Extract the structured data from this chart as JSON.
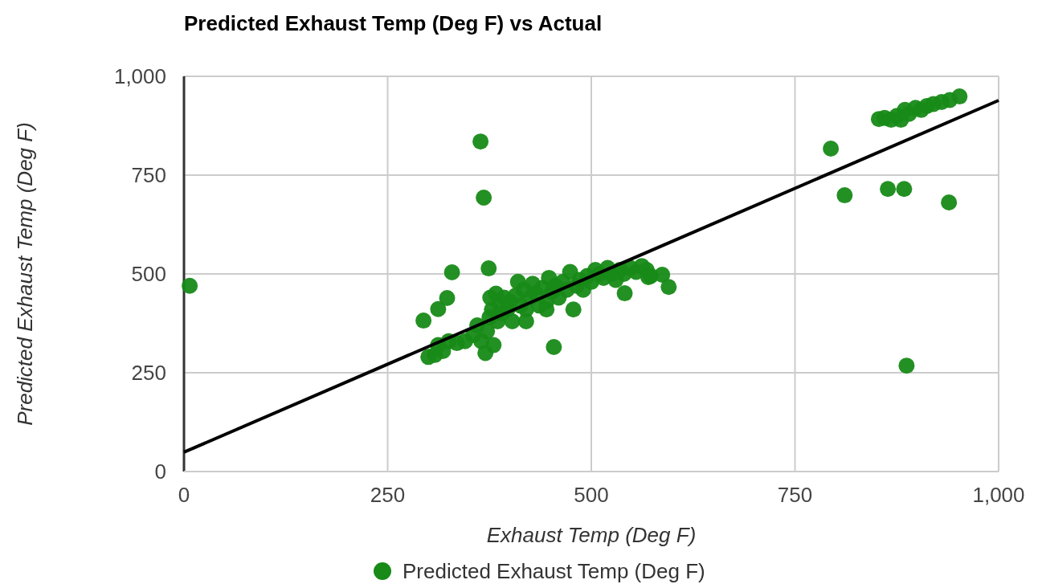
{
  "chart_data": {
    "type": "scatter",
    "title": "Predicted Exhaust Temp (Deg F) vs Actual",
    "xlabel": "Exhaust Temp (Deg F)",
    "ylabel": "Predicted Exhaust Temp (Deg F)",
    "xlim": [
      0,
      1000
    ],
    "ylim": [
      0,
      1000
    ],
    "xticks": [
      {
        "value": 0,
        "label": "0"
      },
      {
        "value": 250,
        "label": "250"
      },
      {
        "value": 500,
        "label": "500"
      },
      {
        "value": 750,
        "label": "750"
      },
      {
        "value": 1000,
        "label": "1,000"
      }
    ],
    "yticks": [
      {
        "value": 0,
        "label": "0"
      },
      {
        "value": 250,
        "label": "250"
      },
      {
        "value": 500,
        "label": "500"
      },
      {
        "value": 750,
        "label": "750"
      },
      {
        "value": 1000,
        "label": "1,000"
      }
    ],
    "grid": true,
    "legend": "bottom",
    "series": [
      {
        "name": "Predicted Exhaust Temp (Deg F)",
        "marker": "circle",
        "color": "#178a17",
        "x": [
          7,
          364,
          368,
          374,
          329,
          294,
          312,
          323,
          300,
          308,
          312,
          318,
          325,
          335,
          345,
          355,
          360,
          365,
          370,
          372,
          375,
          376,
          378,
          380,
          383,
          385,
          388,
          390,
          393,
          397,
          400,
          403,
          407,
          410,
          413,
          417,
          420,
          425,
          428,
          432,
          436,
          440,
          445,
          448,
          452,
          456,
          460,
          465,
          470,
          474,
          478,
          482,
          486,
          490,
          495,
          500,
          505,
          510,
          515,
          520,
          525,
          530,
          535,
          540,
          548,
          555,
          562,
          568,
          573,
          445,
          420,
          454,
          541,
          570,
          587,
          595,
          794,
          811,
          864,
          884,
          939,
          887,
          853,
          860,
          868,
          875,
          880,
          885,
          890,
          898,
          905,
          912,
          920,
          930,
          940,
          952
        ],
        "values": [
          470,
          835,
          693,
          514,
          504,
          382,
          411,
          439,
          290,
          295,
          320,
          305,
          330,
          325,
          330,
          345,
          370,
          330,
          300,
          355,
          390,
          440,
          410,
          320,
          450,
          380,
          420,
          400,
          440,
          410,
          430,
          380,
          445,
          480,
          420,
          460,
          410,
          440,
          475,
          450,
          420,
          465,
          430,
          490,
          455,
          470,
          440,
          480,
          460,
          505,
          410,
          470,
          485,
          460,
          495,
          480,
          510,
          500,
          490,
          515,
          500,
          485,
          510,
          500,
          515,
          505,
          520,
          510,
          495,
          410,
          380,
          315,
          451,
          492,
          498,
          467,
          817,
          699,
          715,
          715,
          681,
          268,
          892,
          895,
          890,
          900,
          890,
          915,
          905,
          920,
          915,
          925,
          930,
          935,
          940,
          949
        ]
      },
      {
        "type": "line",
        "color": "#000000",
        "x": [
          0,
          1000
        ],
        "values": [
          49,
          939
        ],
        "line_style": "solid"
      }
    ]
  }
}
